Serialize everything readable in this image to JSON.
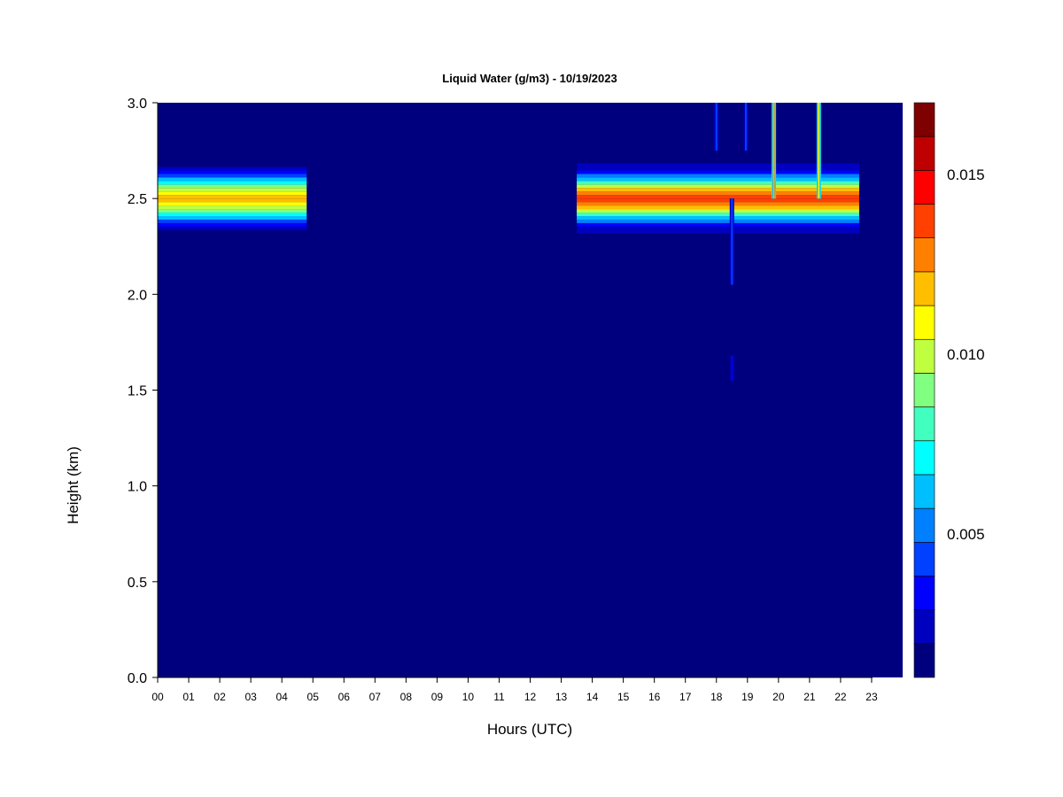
{
  "chart_data": {
    "type": "heatmap",
    "title": "Liquid Water (g/m3) - 10/19/2023",
    "xlabel": "Hours (UTC)",
    "ylabel": "Height (km)",
    "xlim": [
      0,
      24
    ],
    "ylim": [
      0,
      3.0
    ],
    "x_tick_labels": [
      "00",
      "01",
      "02",
      "03",
      "04",
      "05",
      "06",
      "07",
      "08",
      "09",
      "10",
      "11",
      "12",
      "13",
      "14",
      "15",
      "16",
      "17",
      "18",
      "19",
      "20",
      "21",
      "22",
      "23"
    ],
    "y_tick_labels": [
      "0.0",
      "0.5",
      "1.0",
      "1.5",
      "2.0",
      "2.5",
      "3.0"
    ],
    "background_value": 0.001,
    "colorbar": {
      "range": [
        0.001,
        0.017
      ],
      "tick_labels": [
        "0.005",
        "0.010",
        "0.015"
      ],
      "tick_values": [
        0.005,
        0.01,
        0.015
      ],
      "colors": [
        "#00007f",
        "#0000bf",
        "#0000ff",
        "#0040ff",
        "#0080ff",
        "#00bfff",
        "#00ffff",
        "#40ffbf",
        "#80ff80",
        "#bfff40",
        "#ffff00",
        "#ffbf00",
        "#ff8000",
        "#ff4000",
        "#ff0000",
        "#bf0000",
        "#7f0000"
      ]
    },
    "layers": [
      {
        "hours": [
          0.0,
          4.8
        ],
        "center_km": 2.5,
        "half_width_km": 0.22,
        "peak_value": 0.012
      },
      {
        "hours": [
          13.5,
          22.6
        ],
        "center_km": 2.5,
        "half_width_km": 0.22,
        "peak_value": 0.0135
      }
    ],
    "columns": [
      {
        "hour": 18.5,
        "bottom_km": 2.05,
        "top_km": 2.5,
        "peak_value": 0.004
      },
      {
        "hour": 18.5,
        "bottom_km": 1.55,
        "top_km": 1.68,
        "peak_value": 0.003
      },
      {
        "hour": 19.85,
        "bottom_km": 2.5,
        "top_km": 3.0,
        "peak_value": 0.012
      },
      {
        "hour": 21.3,
        "bottom_km": 2.5,
        "top_km": 3.0,
        "peak_value": 0.011
      },
      {
        "hour": 18.0,
        "bottom_km": 2.75,
        "top_km": 3.0,
        "peak_value": 0.004
      },
      {
        "hour": 18.95,
        "bottom_km": 2.75,
        "top_km": 3.0,
        "peak_value": 0.004
      }
    ]
  }
}
